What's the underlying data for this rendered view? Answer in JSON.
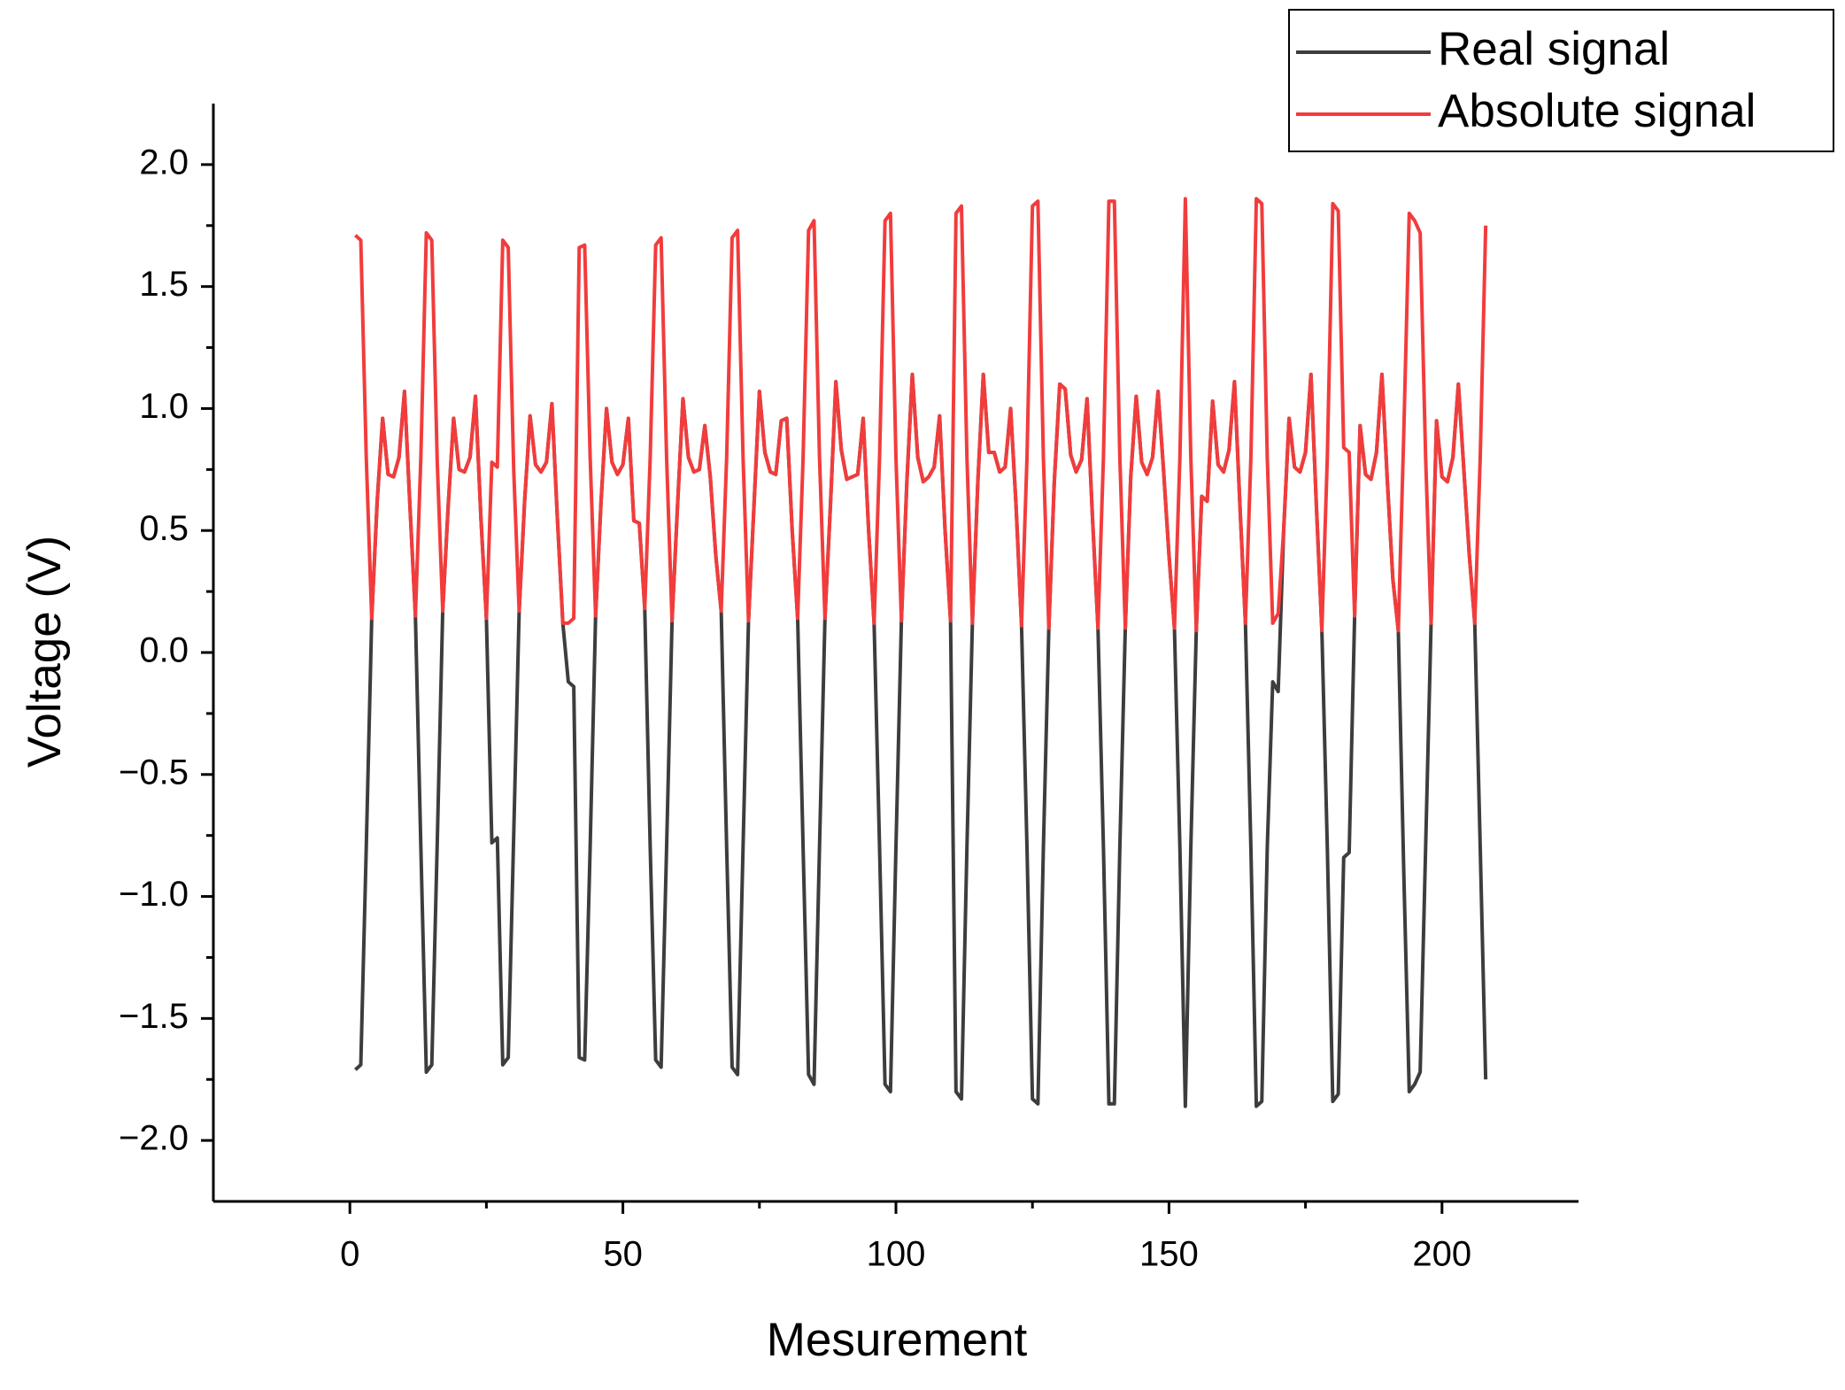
{
  "chart_data": {
    "type": "line",
    "xlabel": "Mesurement",
    "ylabel": "Voltage (V)",
    "legend": "upper right",
    "xlim": [
      -25,
      225
    ],
    "xticks": [
      0,
      50,
      100,
      150,
      200
    ],
    "ylim": [
      -2.25,
      2.25
    ],
    "yticks": [
      {
        "value": -2,
        "label": "−2.0"
      },
      {
        "value": -1.5,
        "label": "−1.5"
      },
      {
        "value": -1,
        "label": "−1.0"
      },
      {
        "value": -0.5,
        "label": "−0.5"
      },
      {
        "value": 0,
        "label": "0.0"
      },
      {
        "value": 0.5,
        "label": "0.5"
      },
      {
        "value": 1,
        "label": "1.0"
      },
      {
        "value": 1.5,
        "label": "1.5"
      },
      {
        "value": 2,
        "label": "2.0"
      }
    ],
    "x": [
      1,
      2,
      3,
      4,
      5,
      6,
      7,
      8,
      9,
      10,
      11,
      12,
      13,
      14,
      15,
      16,
      17,
      18,
      19,
      20,
      21,
      22,
      23,
      24,
      25,
      26,
      27,
      28,
      29,
      30,
      31,
      32,
      33,
      34,
      35,
      36,
      37,
      38,
      39,
      40,
      41,
      42,
      43,
      44,
      45,
      46,
      47,
      48,
      49,
      50,
      51,
      52,
      53,
      54,
      55,
      56,
      57,
      58,
      59,
      60,
      61,
      62,
      63,
      64,
      65,
      66,
      67,
      68,
      69,
      70,
      71,
      72,
      73,
      74,
      75,
      76,
      77,
      78,
      79,
      80,
      81,
      82,
      83,
      84,
      85,
      86,
      87,
      88,
      89,
      90,
      91,
      92,
      93,
      94,
      95,
      96,
      97,
      98,
      99,
      100,
      101,
      102,
      103,
      104,
      105,
      106,
      107,
      108,
      109,
      110,
      111,
      112,
      113,
      114,
      115,
      116,
      117,
      118,
      119,
      120,
      121,
      122,
      123,
      124,
      125,
      126,
      127,
      128,
      129,
      130,
      131,
      132,
      133,
      134,
      135,
      136,
      137,
      138,
      139,
      140,
      141,
      142,
      143,
      144,
      145,
      146,
      147,
      148,
      149,
      150,
      151,
      152,
      153,
      154,
      155,
      156,
      157,
      158,
      159,
      160,
      161,
      162,
      163,
      164,
      165,
      166,
      167,
      168,
      169,
      170,
      171,
      172,
      173,
      174,
      175,
      176,
      177,
      178,
      179,
      180,
      181,
      182,
      183,
      184,
      185,
      186,
      187,
      188,
      189,
      190,
      191,
      192,
      193,
      194,
      195,
      196,
      197,
      198,
      199,
      200,
      201,
      202,
      203,
      204,
      205,
      206,
      207,
      208
    ],
    "series": [
      {
        "name": "Real signal",
        "color": "#3d3d3d",
        "values": [
          -1.71,
          -1.69,
          -0.8,
          0.14,
          0.62,
          0.96,
          0.73,
          0.72,
          0.8,
          1.07,
          0.6,
          0.15,
          -0.8,
          -1.72,
          -1.69,
          -0.78,
          0.17,
          0.6,
          0.96,
          0.75,
          0.74,
          0.8,
          1.05,
          0.55,
          0.14,
          -0.78,
          -0.76,
          -1.69,
          -1.66,
          -0.75,
          0.17,
          0.62,
          0.97,
          0.77,
          0.74,
          0.78,
          1.02,
          0.55,
          0.12,
          -0.12,
          -0.14,
          -1.66,
          -1.67,
          -0.8,
          0.15,
          0.62,
          1.0,
          0.78,
          0.73,
          0.77,
          0.96,
          0.54,
          0.53,
          0.18,
          -0.8,
          -1.67,
          -1.7,
          -0.8,
          0.13,
          0.6,
          1.04,
          0.8,
          0.74,
          0.75,
          0.93,
          0.72,
          0.4,
          0.17,
          -0.8,
          -1.7,
          -1.73,
          -0.8,
          0.13,
          0.6,
          1.07,
          0.82,
          0.74,
          0.73,
          0.95,
          0.96,
          0.5,
          0.14,
          -0.8,
          -1.73,
          -1.77,
          -0.8,
          0.14,
          0.6,
          1.11,
          0.83,
          0.71,
          0.72,
          0.73,
          0.96,
          0.5,
          0.12,
          -0.8,
          -1.77,
          -1.8,
          -0.8,
          0.13,
          0.7,
          1.14,
          0.8,
          0.7,
          0.72,
          0.76,
          0.97,
          0.5,
          0.13,
          -1.8,
          -1.83,
          -0.8,
          0.12,
          0.7,
          1.14,
          0.82,
          0.82,
          0.74,
          0.76,
          1.0,
          0.6,
          0.11,
          -0.8,
          -1.83,
          -1.85,
          -0.8,
          0.1,
          0.7,
          1.1,
          1.08,
          0.81,
          0.74,
          0.79,
          1.04,
          0.55,
          0.1,
          -0.8,
          -1.85,
          -1.85,
          -0.8,
          0.1,
          0.72,
          1.05,
          0.78,
          0.73,
          0.8,
          1.07,
          0.75,
          0.4,
          0.1,
          -0.8,
          -1.86,
          -0.8,
          0.09,
          0.64,
          0.62,
          1.03,
          0.77,
          0.74,
          0.83,
          1.11,
          0.6,
          0.12,
          -0.8,
          -1.86,
          -1.84,
          -0.8,
          -0.12,
          -0.16,
          0.5,
          0.96,
          0.76,
          0.74,
          0.82,
          1.14,
          0.6,
          0.09,
          -0.8,
          -1.84,
          -1.81,
          -0.84,
          -0.82,
          0.15,
          0.93,
          0.73,
          0.71,
          0.82,
          1.14,
          0.7,
          0.3,
          0.09,
          -0.9,
          -1.8,
          -1.77,
          -1.72,
          -0.8,
          0.12,
          0.95,
          0.72,
          0.7,
          0.8,
          1.1,
          0.75,
          0.4,
          0.12,
          -0.8,
          -1.75
        ]
      },
      {
        "name": "Absolute signal",
        "color": "#f23c3c",
        "values": [
          1.71,
          1.69,
          0.8,
          0.14,
          0.62,
          0.96,
          0.73,
          0.72,
          0.8,
          1.07,
          0.6,
          0.15,
          0.8,
          1.72,
          1.69,
          0.78,
          0.17,
          0.6,
          0.96,
          0.75,
          0.74,
          0.8,
          1.05,
          0.55,
          0.14,
          0.78,
          0.76,
          1.69,
          1.66,
          0.75,
          0.17,
          0.62,
          0.97,
          0.77,
          0.74,
          0.78,
          1.02,
          0.55,
          0.12,
          0.12,
          0.14,
          1.66,
          1.67,
          0.8,
          0.15,
          0.62,
          1.0,
          0.78,
          0.73,
          0.77,
          0.96,
          0.54,
          0.53,
          0.18,
          0.8,
          1.67,
          1.7,
          0.8,
          0.13,
          0.6,
          1.04,
          0.8,
          0.74,
          0.75,
          0.93,
          0.72,
          0.4,
          0.17,
          0.8,
          1.7,
          1.73,
          0.8,
          0.13,
          0.6,
          1.07,
          0.82,
          0.74,
          0.73,
          0.95,
          0.96,
          0.5,
          0.14,
          0.8,
          1.73,
          1.77,
          0.8,
          0.14,
          0.6,
          1.11,
          0.83,
          0.71,
          0.72,
          0.73,
          0.96,
          0.5,
          0.12,
          0.8,
          1.77,
          1.8,
          0.8,
          0.13,
          0.7,
          1.14,
          0.8,
          0.7,
          0.72,
          0.76,
          0.97,
          0.5,
          0.13,
          1.8,
          1.83,
          0.8,
          0.12,
          0.7,
          1.14,
          0.82,
          0.82,
          0.74,
          0.76,
          1.0,
          0.6,
          0.11,
          0.8,
          1.83,
          1.85,
          0.8,
          0.1,
          0.7,
          1.1,
          1.08,
          0.81,
          0.74,
          0.79,
          1.04,
          0.55,
          0.1,
          0.8,
          1.85,
          1.85,
          0.8,
          0.1,
          0.72,
          1.05,
          0.78,
          0.73,
          0.8,
          1.07,
          0.75,
          0.4,
          0.1,
          0.8,
          1.86,
          0.8,
          0.09,
          0.64,
          0.62,
          1.03,
          0.77,
          0.74,
          0.83,
          1.11,
          0.6,
          0.12,
          0.8,
          1.86,
          1.84,
          0.8,
          0.12,
          0.16,
          0.5,
          0.96,
          0.76,
          0.74,
          0.82,
          1.14,
          0.6,
          0.09,
          0.8,
          1.84,
          1.81,
          0.84,
          0.82,
          0.15,
          0.93,
          0.73,
          0.71,
          0.82,
          1.14,
          0.7,
          0.3,
          0.09,
          0.9,
          1.8,
          1.77,
          1.72,
          0.8,
          0.12,
          0.95,
          0.72,
          0.7,
          0.8,
          1.1,
          0.75,
          0.4,
          0.12,
          0.8,
          1.75
        ]
      }
    ]
  }
}
